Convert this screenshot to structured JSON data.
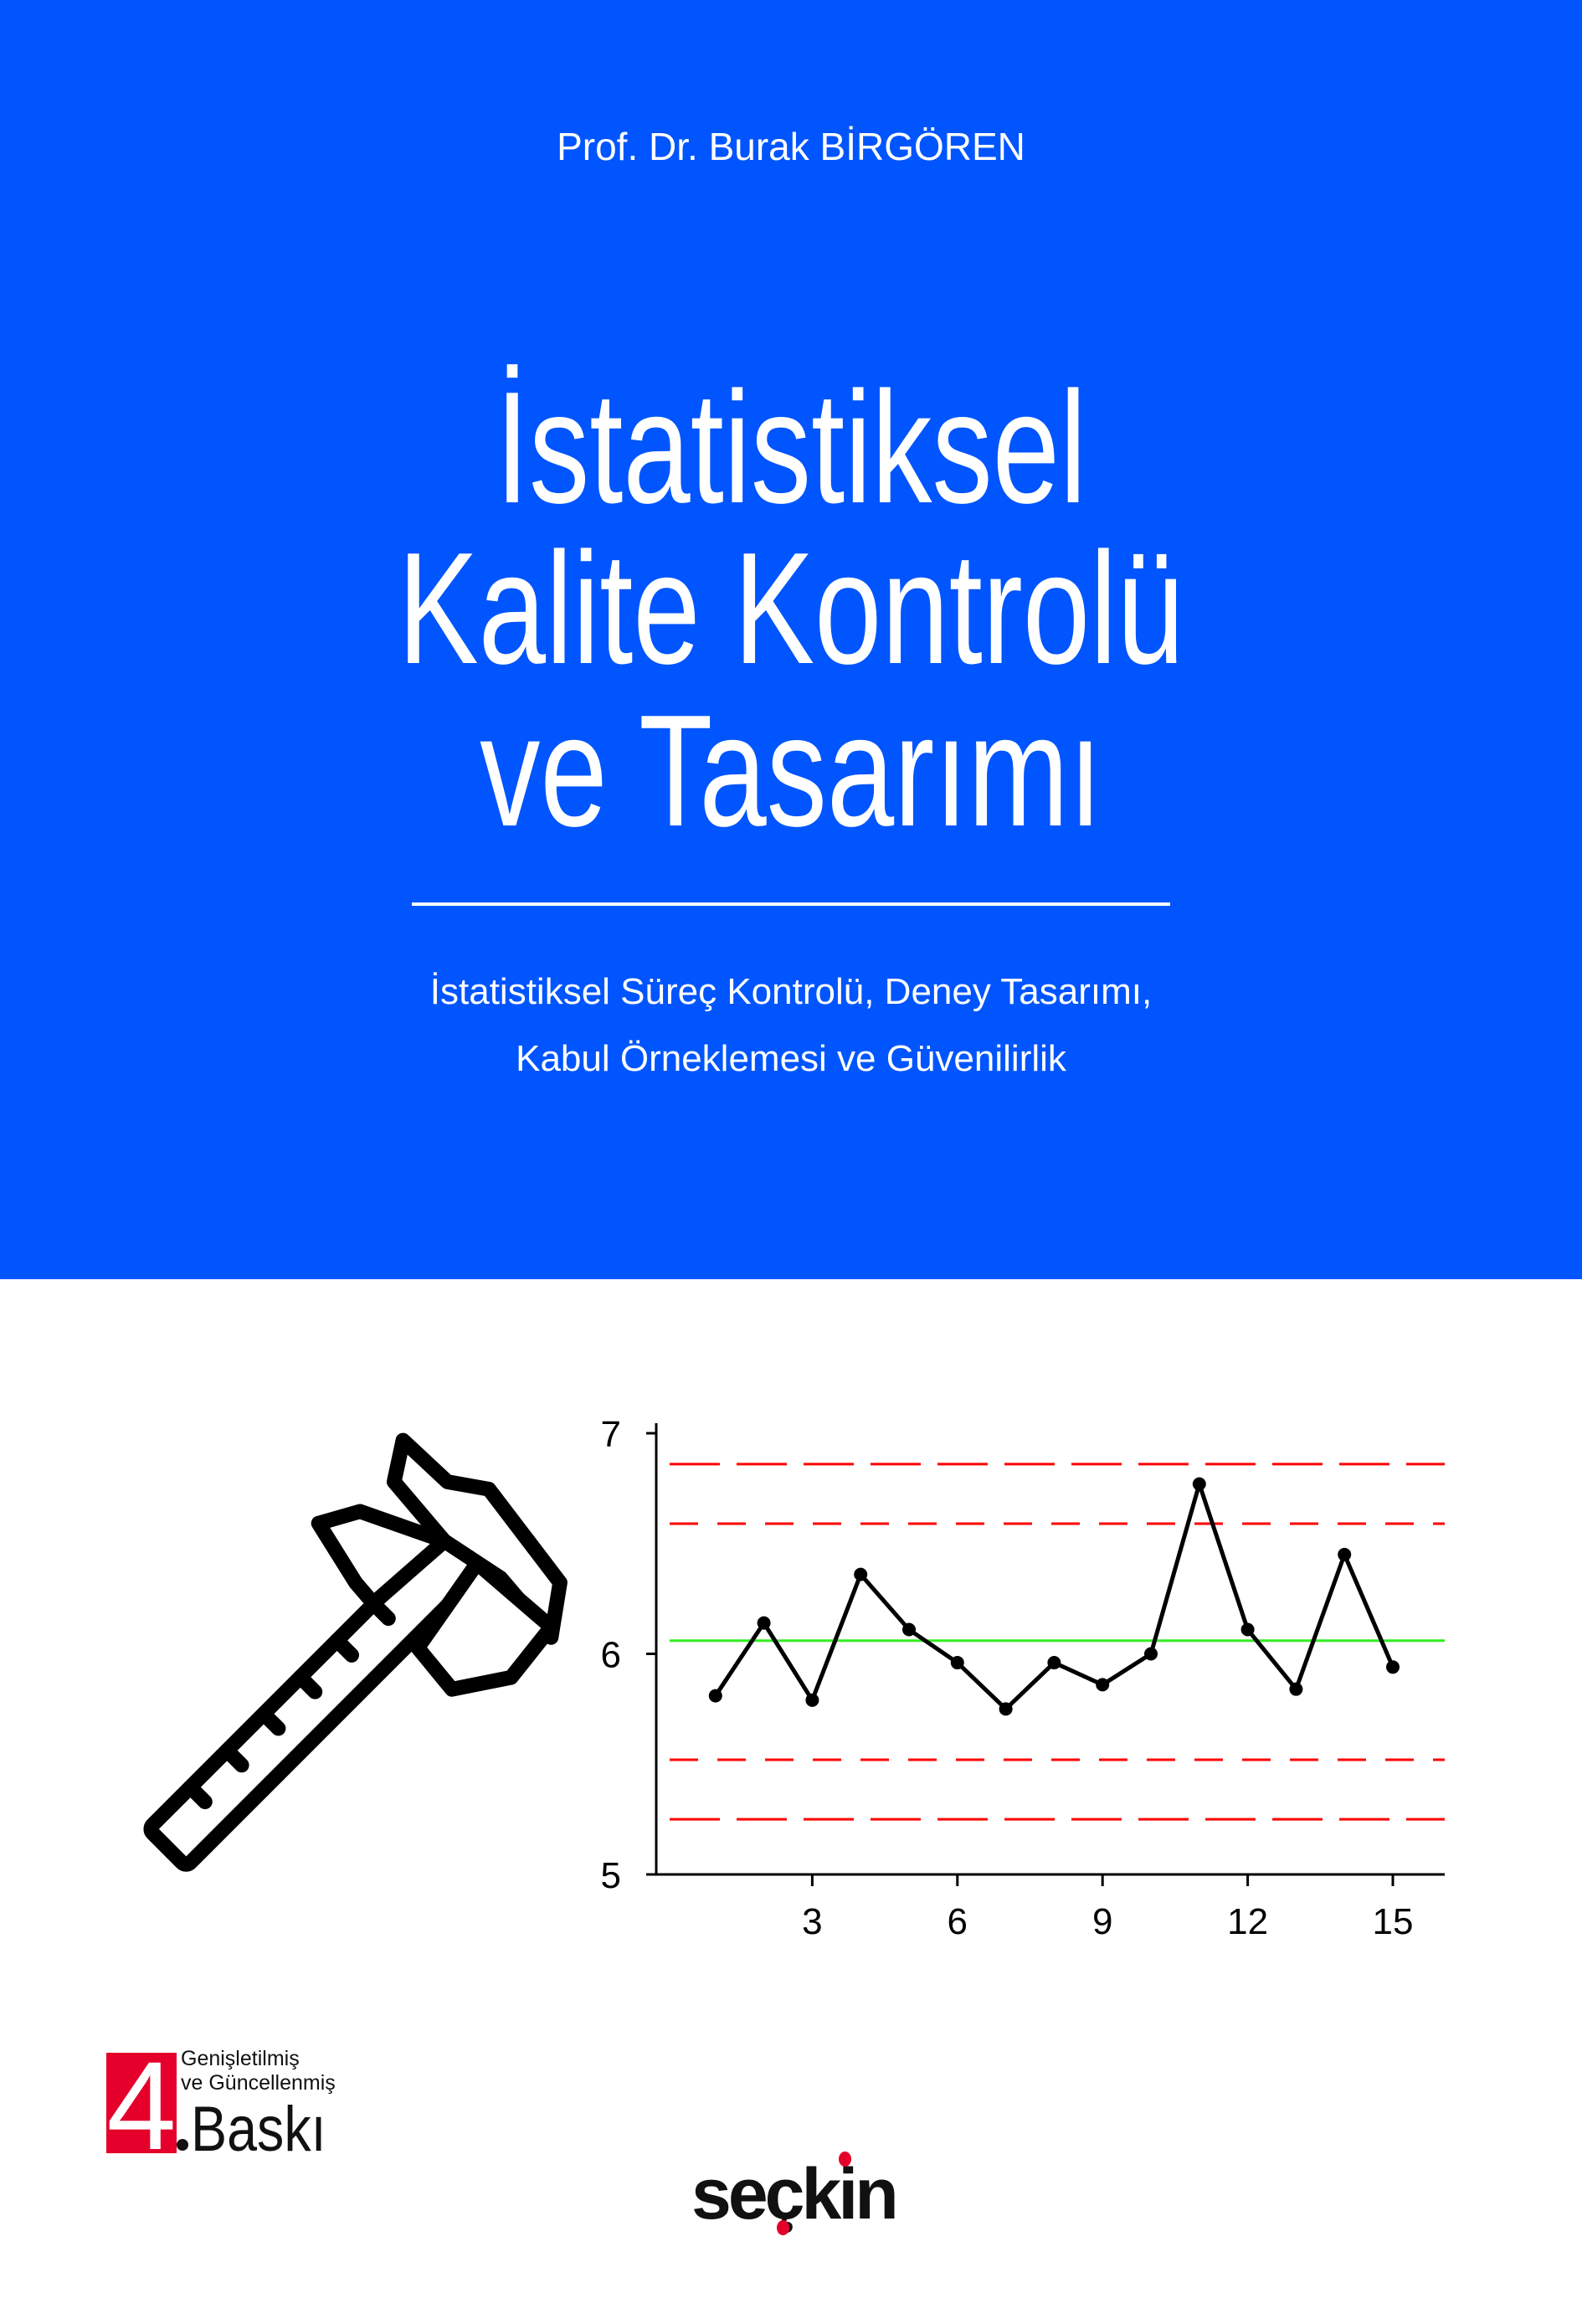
{
  "cover": {
    "author": "Prof. Dr. Burak BİRGÖREN",
    "title_lines": [
      "İstatistiksel",
      "Kalite Kontrolü",
      "ve Tasarımı"
    ],
    "subtitle_lines": [
      "İstatistiksel Süreç Kontrolü, Deney Tasarımı,",
      "Kabul Örneklemesi ve Güvenilirlik"
    ],
    "background_color": "#0055fe",
    "icon": "caliper-icon"
  },
  "edition": {
    "number": "4",
    "line1": "Genişletilmiş",
    "line2": "ve Güncellenmiş",
    "label": "Baskı",
    "color": "#e4002b"
  },
  "publisher": {
    "name": "seçkin",
    "dot_color": "#e4002b"
  },
  "chart_data": {
    "type": "line",
    "x": [
      1,
      2,
      3,
      4,
      5,
      6,
      7,
      8,
      9,
      10,
      11,
      12,
      13,
      14,
      15
    ],
    "values": [
      5.81,
      6.14,
      5.79,
      6.36,
      6.11,
      5.96,
      5.75,
      5.96,
      5.86,
      6.0,
      6.77,
      6.11,
      5.84,
      6.45,
      5.94
    ],
    "xticks": [
      "3",
      "6",
      "9",
      "12",
      "15"
    ],
    "yticks": [
      "5",
      "6",
      "7"
    ],
    "ylim": [
      5,
      7
    ],
    "center_line": {
      "value": 6.06,
      "color": "#33ee22"
    },
    "limit_lines": {
      "values": [
        6.86,
        6.59,
        5.52,
        5.25
      ],
      "color": "#ff0000"
    },
    "line_color": "#000000",
    "grid": false
  }
}
